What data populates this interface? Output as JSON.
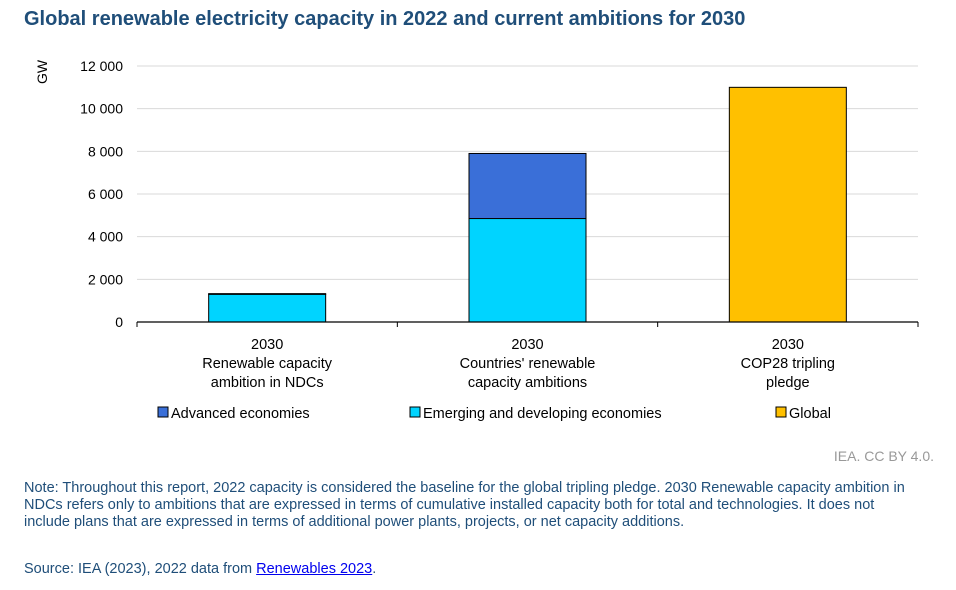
{
  "title": "Global renewable electricity capacity in 2022 and current ambitions for 2030",
  "credit": "IEA. CC BY 4.0.",
  "note": "Note: Throughout this report, 2022 capacity is considered the baseline for the global tripling pledge. 2030 Renewable capacity ambition in NDCs refers only to ambitions that are expressed in terms of cumulative installed capacity both for total and technologies. It does not include plans that are expressed in terms of additional power plants, projects, or net capacity additions.",
  "source": {
    "prefix": "Source: IEA (2023), 2022 data from ",
    "link_text": "Renewables 2023",
    "suffix": "."
  },
  "colors": {
    "advanced": "#3a6fd8",
    "emerging": "#00d4ff",
    "global": "#ffc000",
    "grid": "#d9d9d9",
    "title": "#1f4e79"
  },
  "chart_data": {
    "type": "bar",
    "stacked": true,
    "ylabel": "GW",
    "ylim": [
      0,
      12000
    ],
    "yticks": [
      0,
      2000,
      4000,
      6000,
      8000,
      10000,
      12000
    ],
    "ytick_labels": [
      "0",
      "2 000",
      "4 000",
      "6 000",
      "8 000",
      "10 000",
      "12 000"
    ],
    "grid": true,
    "legend_position": "bottom",
    "categories": [
      [
        "2030",
        "Renewable capacity",
        "ambition in NDCs"
      ],
      [
        "2030",
        "Countries' renewable",
        "capacity ambitions"
      ],
      [
        "2030",
        "COP28 tripling",
        "pledge"
      ]
    ],
    "series": [
      {
        "name": "Emerging and developing economies",
        "color_key": "emerging",
        "values": [
          1300,
          4850,
          0
        ]
      },
      {
        "name": "Advanced economies",
        "color_key": "advanced",
        "values": [
          30,
          3050,
          0
        ]
      },
      {
        "name": "Global",
        "color_key": "global",
        "values": [
          0,
          0,
          11000
        ]
      }
    ],
    "legend": [
      {
        "name": "Advanced economies",
        "color_key": "advanced"
      },
      {
        "name": "Emerging and developing economies",
        "color_key": "emerging"
      },
      {
        "name": "Global",
        "color_key": "global"
      }
    ]
  }
}
